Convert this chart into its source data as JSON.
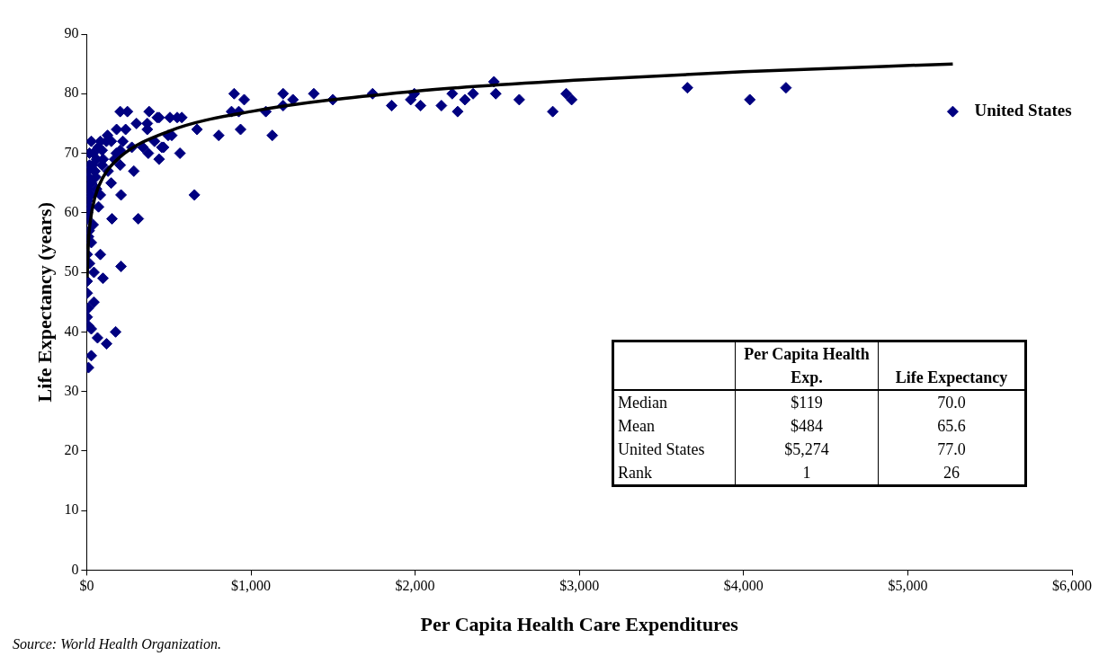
{
  "chart_data": {
    "type": "scatter",
    "xlabel": "Per Capita Health Care Expenditures",
    "ylabel": "Life Expectancy (years)",
    "xlim": [
      0,
      6000
    ],
    "ylim": [
      0,
      90
    ],
    "xticks": [
      {
        "value": 0,
        "label": "$0"
      },
      {
        "value": 1000,
        "label": "$1,000"
      },
      {
        "value": 2000,
        "label": "$2,000"
      },
      {
        "value": 3000,
        "label": "$3,000"
      },
      {
        "value": 4000,
        "label": "$4,000"
      },
      {
        "value": 5000,
        "label": "$5,000"
      },
      {
        "value": 6000,
        "label": "$6,000"
      }
    ],
    "yticks": [
      0,
      10,
      20,
      30,
      40,
      50,
      60,
      70,
      80,
      90
    ],
    "grid": false,
    "legend": false,
    "series": [
      {
        "marker": "diamond",
        "color": "#000080",
        "x": [
          3658,
          5274,
          4038,
          4258,
          441,
          507,
          551,
          579,
          496,
          518,
          457,
          568,
          672,
          656,
          804,
          898,
          959,
          882,
          926,
          937,
          1091,
          1130,
          1196,
          1196,
          1256,
          1383,
          1499,
          1741,
          1857,
          1995,
          1973,
          2033,
          2160,
          2226,
          2259,
          2303,
          2353,
          2480,
          2491,
          2634,
          2838,
          2920,
          2953,
          204,
          248,
          380,
          430,
          303,
          369,
          369,
          182,
          237,
          127,
          28,
          83,
          17,
          94,
          204,
          275,
          342,
          375,
          441,
          468,
          413,
          17,
          94,
          204,
          287,
          11,
          55,
          149,
          5,
          83,
          209,
          17,
          72,
          3,
          39,
          154,
          314,
          11,
          28,
          3,
          83,
          17,
          209,
          3,
          99,
          44,
          3,
          44,
          11,
          3,
          11,
          28,
          66,
          176,
          121,
          28,
          11,
          8,
          30,
          50,
          60,
          120,
          150,
          40,
          70,
          100,
          25,
          15,
          5,
          60,
          130,
          170,
          220,
          180,
          8,
          35
        ],
        "values": [
          81,
          77,
          79,
          81,
          76,
          76,
          76,
          76,
          73,
          73,
          71,
          70,
          74,
          63,
          73,
          80,
          79,
          77,
          77,
          74,
          77,
          73,
          80,
          78,
          79,
          80,
          79,
          80,
          78,
          80,
          79,
          78,
          78,
          80,
          77,
          79,
          80,
          82,
          80,
          79,
          77,
          80,
          79,
          77,
          77,
          77,
          76,
          75,
          75,
          74,
          74,
          74,
          73,
          72,
          72,
          70,
          70.5,
          70.5,
          71,
          71,
          70,
          69,
          71,
          72,
          68,
          68,
          68,
          67,
          66,
          66,
          65,
          64,
          63,
          63,
          61,
          61,
          59,
          58,
          59,
          59,
          56,
          55,
          53,
          53,
          51.5,
          51,
          48.5,
          49,
          50,
          46.5,
          45,
          44,
          42.5,
          41,
          40.5,
          39,
          40,
          38,
          36,
          34,
          62,
          65,
          67,
          69,
          72,
          72,
          70,
          71,
          69,
          63,
          57,
          60,
          64,
          67,
          69,
          72,
          70,
          67,
          68
        ]
      },
      {
        "type": "line",
        "marker": "none",
        "color": "#000000",
        "x": [
          3,
          10,
          20,
          50,
          100,
          200,
          500,
          1000,
          2000,
          3000,
          4000,
          5274
        ],
        "values": [
          49.1,
          54.9,
          58.2,
          62.6,
          66.0,
          69.3,
          73.7,
          77.0,
          80.4,
          82.3,
          83.7,
          85.0
        ]
      }
    ],
    "annotations": [
      {
        "text": "United States",
        "x": 5274,
        "y": 77
      },
      "Per Capita Health Exp.",
      "Life Expectancy",
      "Median",
      "$119",
      "70.0",
      "Mean",
      "$484",
      "65.6",
      "United States",
      "$5,274",
      "77.0",
      "Rank",
      "1",
      "26",
      "Source: World Health Organization."
    ]
  }
}
